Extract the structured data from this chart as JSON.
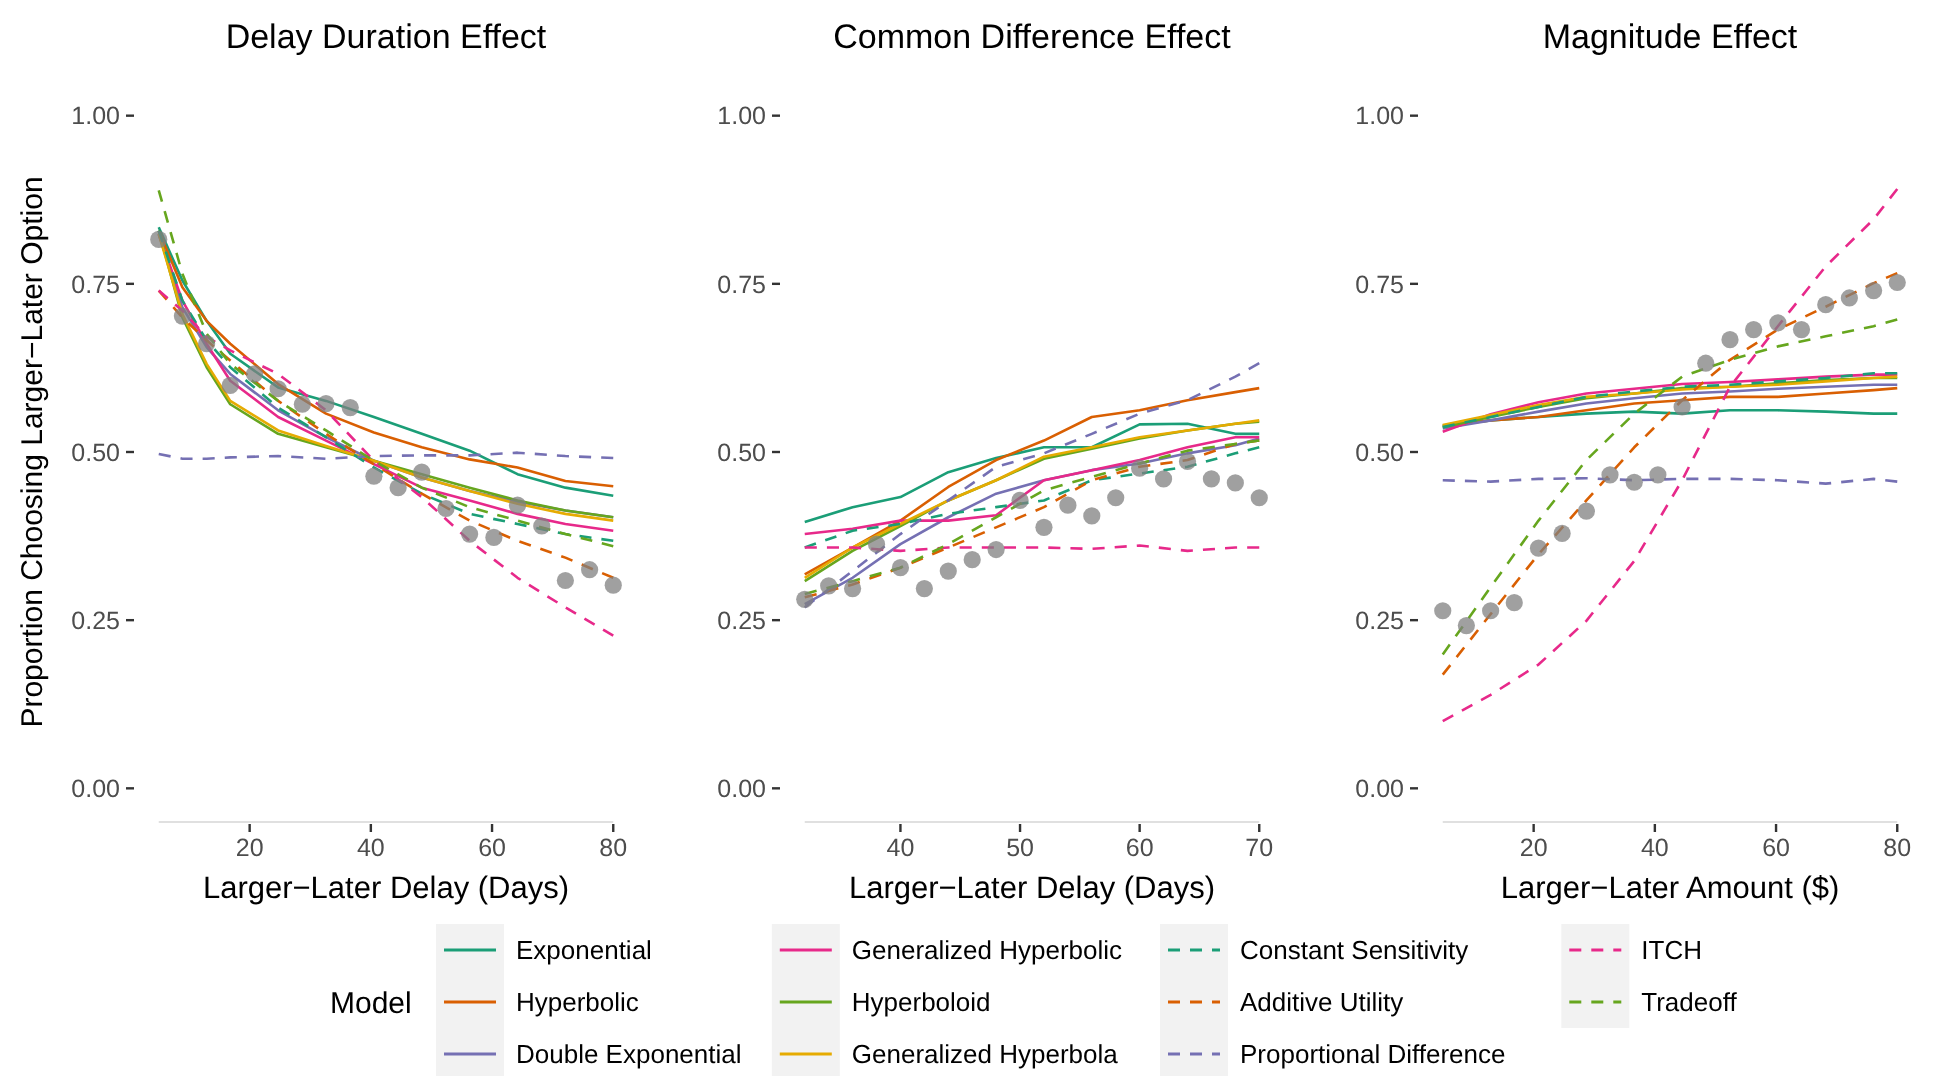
{
  "chart_data": [
    {
      "type": "line",
      "title": "Delay Duration Effect",
      "xlabel": "Larger−Later Delay (Days)",
      "ylabel": "Proportion Choosing Larger−Later Option",
      "legend": "bottom",
      "legend_title": "Model",
      "xlim": [
        5,
        80
      ],
      "ylim": [
        0,
        1
      ],
      "xticks": [
        20,
        40,
        60,
        80
      ],
      "yticks": [
        {
          "value": 0,
          "label": "0.00"
        },
        {
          "value": 0.25,
          "label": "0.25"
        },
        {
          "value": 0.5,
          "label": "0.50"
        },
        {
          "value": 0.75,
          "label": "0.75"
        },
        {
          "value": 1,
          "label": "1.00"
        }
      ],
      "x": [
        5,
        8.9,
        12.9,
        16.8,
        24.7,
        32.6,
        40.5,
        48.4,
        56.3,
        64.2,
        72.1,
        80
      ],
      "series": [
        {
          "name": "Exponential",
          "color": "#1b9e77",
          "line_style": "solid",
          "values": [
            0.834,
            0.755,
            0.695,
            0.646,
            0.596,
            0.576,
            0.552,
            0.527,
            0.502,
            0.467,
            0.447,
            0.435
          ]
        },
        {
          "name": "Hyperbolic",
          "color": "#d95f02",
          "line_style": "solid",
          "values": [
            0.829,
            0.745,
            0.695,
            0.661,
            0.601,
            0.557,
            0.529,
            0.507,
            0.489,
            0.477,
            0.457,
            0.449
          ]
        },
        {
          "name": "Double Exponential",
          "color": "#7570b3",
          "line_style": "solid",
          "values": [
            0.824,
            0.715,
            0.656,
            0.616,
            0.562,
            0.522,
            0.487,
            0.462,
            0.442,
            0.426,
            0.413,
            0.403
          ]
        },
        {
          "name": "Generalized Hyperbolic",
          "color": "#e7298a",
          "line_style": "solid",
          "values": [
            0.824,
            0.725,
            0.661,
            0.606,
            0.552,
            0.517,
            0.482,
            0.447,
            0.428,
            0.408,
            0.393,
            0.383
          ]
        },
        {
          "name": "Hyperboloid",
          "color": "#66a61e",
          "line_style": "solid",
          "values": [
            0.829,
            0.7,
            0.626,
            0.571,
            0.527,
            0.507,
            0.487,
            0.467,
            0.447,
            0.428,
            0.413,
            0.403
          ]
        },
        {
          "name": "Generalized Hyperbola",
          "color": "#e6ab02",
          "line_style": "solid",
          "values": [
            0.824,
            0.705,
            0.631,
            0.576,
            0.532,
            0.509,
            0.487,
            0.462,
            0.442,
            0.423,
            0.408,
            0.398
          ]
        },
        {
          "name": "Constant Sensitivity",
          "color": "#1b9e77",
          "line_style": "dashed",
          "values": [
            0.829,
            0.725,
            0.666,
            0.626,
            0.566,
            0.522,
            0.477,
            0.438,
            0.408,
            0.393,
            0.378,
            0.368
          ]
        },
        {
          "name": "Additive Utility",
          "color": "#d95f02",
          "line_style": "dashed",
          "values": [
            0.74,
            0.7,
            0.666,
            0.636,
            0.576,
            0.527,
            0.482,
            0.438,
            0.398,
            0.368,
            0.343,
            0.313
          ]
        },
        {
          "name": "Proportional Difference",
          "color": "#7570b3",
          "line_style": "dashed",
          "values": [
            0.497,
            0.49,
            0.49,
            0.492,
            0.494,
            0.49,
            0.494,
            0.495,
            0.495,
            0.499,
            0.494,
            0.491
          ]
        },
        {
          "name": "ITCH",
          "color": "#e7298a",
          "line_style": "dashed",
          "values": [
            0.74,
            0.71,
            0.671,
            0.651,
            0.616,
            0.562,
            0.487,
            0.433,
            0.368,
            0.313,
            0.269,
            0.227
          ]
        },
        {
          "name": "Tradeoff",
          "color": "#66a61e",
          "line_style": "dashed",
          "values": [
            0.889,
            0.765,
            0.676,
            0.631,
            0.576,
            0.532,
            0.487,
            0.447,
            0.418,
            0.398,
            0.378,
            0.36
          ]
        },
        {
          "type": "scatter",
          "marker": "circle",
          "color": "#808080",
          "x": [
            5,
            8.9,
            12.9,
            16.8,
            20.8,
            24.7,
            28.7,
            32.6,
            36.6,
            40.5,
            44.5,
            48.4,
            52.4,
            56.3,
            60.3,
            64.2,
            68.2,
            72.1,
            76.1,
            80
          ],
          "values": [
            0.816,
            0.702,
            0.661,
            0.599,
            0.616,
            0.594,
            0.571,
            0.572,
            0.566,
            0.464,
            0.447,
            0.47,
            0.416,
            0.378,
            0.373,
            0.421,
            0.39,
            0.309,
            0.325,
            0.302
          ]
        }
      ]
    },
    {
      "type": "line",
      "title": "Common Difference Effect",
      "xlabel": "Larger−Later Delay (Days)",
      "xlim": [
        32,
        70
      ],
      "ylim": [
        0,
        1
      ],
      "xticks": [
        40,
        50,
        60,
        70
      ],
      "yticks": [
        {
          "value": 0,
          "label": "0.00"
        },
        {
          "value": 0.25,
          "label": "0.25"
        },
        {
          "value": 0.5,
          "label": "0.50"
        },
        {
          "value": 0.75,
          "label": "0.75"
        },
        {
          "value": 1,
          "label": "1.00"
        }
      ],
      "x": [
        32,
        36,
        40,
        44,
        48,
        52,
        56,
        60,
        64,
        68,
        70
      ],
      "series": [
        {
          "color": "#1b9e77",
          "line_style": "solid",
          "values": [
            0.396,
            0.418,
            0.433,
            0.47,
            0.491,
            0.507,
            0.507,
            0.541,
            0.542,
            0.527,
            0.527
          ]
        },
        {
          "color": "#d95f02",
          "line_style": "solid",
          "values": [
            0.318,
            0.358,
            0.398,
            0.448,
            0.488,
            0.517,
            0.552,
            0.562,
            0.577,
            0.589,
            0.595
          ]
        },
        {
          "color": "#7570b3",
          "line_style": "solid",
          "values": [
            0.274,
            0.313,
            0.363,
            0.403,
            0.438,
            0.458,
            0.473,
            0.483,
            0.498,
            0.51,
            0.52
          ]
        },
        {
          "color": "#e7298a",
          "line_style": "solid",
          "values": [
            0.378,
            0.386,
            0.398,
            0.398,
            0.406,
            0.458,
            0.473,
            0.488,
            0.507,
            0.522,
            0.522
          ]
        },
        {
          "color": "#66a61e",
          "line_style": "solid",
          "values": [
            0.308,
            0.353,
            0.39,
            0.428,
            0.458,
            0.49,
            0.505,
            0.52,
            0.532,
            0.542,
            0.545
          ]
        },
        {
          "color": "#e6ab02",
          "line_style": "solid",
          "values": [
            0.313,
            0.358,
            0.393,
            0.428,
            0.458,
            0.493,
            0.507,
            0.522,
            0.532,
            0.542,
            0.547
          ]
        },
        {
          "color": "#1b9e77",
          "line_style": "dashed",
          "values": [
            0.358,
            0.383,
            0.393,
            0.408,
            0.418,
            0.428,
            0.458,
            0.468,
            0.478,
            0.498,
            0.507
          ]
        },
        {
          "color": "#d95f02",
          "line_style": "dashed",
          "values": [
            0.284,
            0.303,
            0.328,
            0.358,
            0.388,
            0.418,
            0.458,
            0.478,
            0.488,
            0.512,
            0.517
          ]
        },
        {
          "color": "#7570b3",
          "line_style": "dashed",
          "values": [
            0.269,
            0.323,
            0.378,
            0.428,
            0.478,
            0.498,
            0.527,
            0.557,
            0.577,
            0.612,
            0.632
          ]
        },
        {
          "color": "#e7298a",
          "line_style": "dashed",
          "values": [
            0.358,
            0.358,
            0.353,
            0.358,
            0.358,
            0.358,
            0.356,
            0.361,
            0.353,
            0.358,
            0.358
          ]
        },
        {
          "color": "#66a61e",
          "line_style": "dashed",
          "values": [
            0.289,
            0.308,
            0.328,
            0.363,
            0.403,
            0.443,
            0.463,
            0.483,
            0.502,
            0.512,
            0.517
          ]
        },
        {
          "type": "scatter",
          "marker": "circle",
          "color": "#808080",
          "x": [
            32,
            34,
            36,
            38,
            40,
            42,
            44,
            46,
            48,
            50,
            52,
            54,
            56,
            58,
            60,
            62,
            64,
            66,
            68,
            70
          ],
          "values": [
            0.281,
            0.301,
            0.297,
            0.363,
            0.328,
            0.297,
            0.323,
            0.34,
            0.355,
            0.428,
            0.388,
            0.421,
            0.405,
            0.432,
            0.476,
            0.46,
            0.486,
            0.46,
            0.454,
            0.432
          ]
        }
      ]
    },
    {
      "type": "line",
      "title": "Magnitude Effect",
      "xlabel": "Larger−Later Amount ($)",
      "xlim": [
        5,
        80
      ],
      "ylim": [
        0,
        1
      ],
      "xticks": [
        20,
        40,
        60,
        80
      ],
      "yticks": [
        {
          "value": 0,
          "label": "0.00"
        },
        {
          "value": 0.25,
          "label": "0.25"
        },
        {
          "value": 0.5,
          "label": "0.50"
        },
        {
          "value": 0.75,
          "label": "0.75"
        },
        {
          "value": 1,
          "label": "1.00"
        }
      ],
      "x": [
        5,
        12.9,
        20.8,
        28.7,
        36.6,
        44.5,
        52.4,
        60.3,
        68.2,
        76.1,
        80
      ],
      "series": [
        {
          "color": "#1b9e77",
          "line_style": "solid",
          "values": [
            0.539,
            0.547,
            0.552,
            0.557,
            0.56,
            0.557,
            0.562,
            0.562,
            0.56,
            0.557,
            0.557
          ]
        },
        {
          "color": "#d95f02",
          "line_style": "solid",
          "values": [
            0.539,
            0.547,
            0.552,
            0.562,
            0.572,
            0.577,
            0.582,
            0.582,
            0.587,
            0.592,
            0.595
          ]
        },
        {
          "color": "#7570b3",
          "line_style": "solid",
          "values": [
            0.535,
            0.547,
            0.56,
            0.572,
            0.58,
            0.587,
            0.59,
            0.594,
            0.597,
            0.6,
            0.6
          ]
        },
        {
          "color": "#e7298a",
          "line_style": "solid",
          "values": [
            0.53,
            0.556,
            0.574,
            0.587,
            0.594,
            0.601,
            0.604,
            0.608,
            0.612,
            0.615,
            0.615
          ]
        },
        {
          "color": "#66a61e",
          "line_style": "solid",
          "values": [
            0.537,
            0.552,
            0.567,
            0.58,
            0.587,
            0.595,
            0.597,
            0.602,
            0.607,
            0.61,
            0.61
          ]
        },
        {
          "color": "#e6ab02",
          "line_style": "solid",
          "values": [
            0.54,
            0.555,
            0.57,
            0.582,
            0.587,
            0.593,
            0.597,
            0.6,
            0.605,
            0.61,
            0.612
          ]
        },
        {
          "color": "#1b9e77",
          "line_style": "dashed",
          "values": [
            0.537,
            0.552,
            0.567,
            0.582,
            0.59,
            0.597,
            0.6,
            0.605,
            0.61,
            0.617,
            0.617
          ]
        },
        {
          "color": "#d95f02",
          "line_style": "dashed",
          "values": [
            0.169,
            0.259,
            0.348,
            0.428,
            0.507,
            0.577,
            0.637,
            0.682,
            0.716,
            0.751,
            0.766
          ]
        },
        {
          "color": "#7570b3",
          "line_style": "dashed",
          "values": [
            0.458,
            0.456,
            0.46,
            0.461,
            0.458,
            0.46,
            0.46,
            0.458,
            0.453,
            0.46,
            0.456
          ]
        },
        {
          "color": "#e7298a",
          "line_style": "dashed",
          "values": [
            0.1,
            0.139,
            0.184,
            0.249,
            0.338,
            0.458,
            0.597,
            0.687,
            0.776,
            0.846,
            0.891
          ]
        },
        {
          "color": "#66a61e",
          "line_style": "dashed",
          "values": [
            0.199,
            0.299,
            0.398,
            0.488,
            0.557,
            0.612,
            0.637,
            0.657,
            0.672,
            0.687,
            0.697
          ]
        },
        {
          "type": "scatter",
          "marker": "circle",
          "color": "#808080",
          "x": [
            5,
            8.9,
            12.9,
            16.8,
            20.8,
            24.7,
            28.7,
            32.6,
            36.6,
            40.5,
            44.5,
            48.4,
            52.4,
            56.3,
            60.3,
            64.2,
            68.2,
            72.1,
            76.1,
            80
          ],
          "values": [
            0.264,
            0.242,
            0.264,
            0.276,
            0.357,
            0.379,
            0.412,
            0.466,
            0.455,
            0.466,
            0.567,
            0.632,
            0.667,
            0.682,
            0.692,
            0.682,
            0.719,
            0.729,
            0.74,
            0.752
          ]
        }
      ]
    }
  ]
}
